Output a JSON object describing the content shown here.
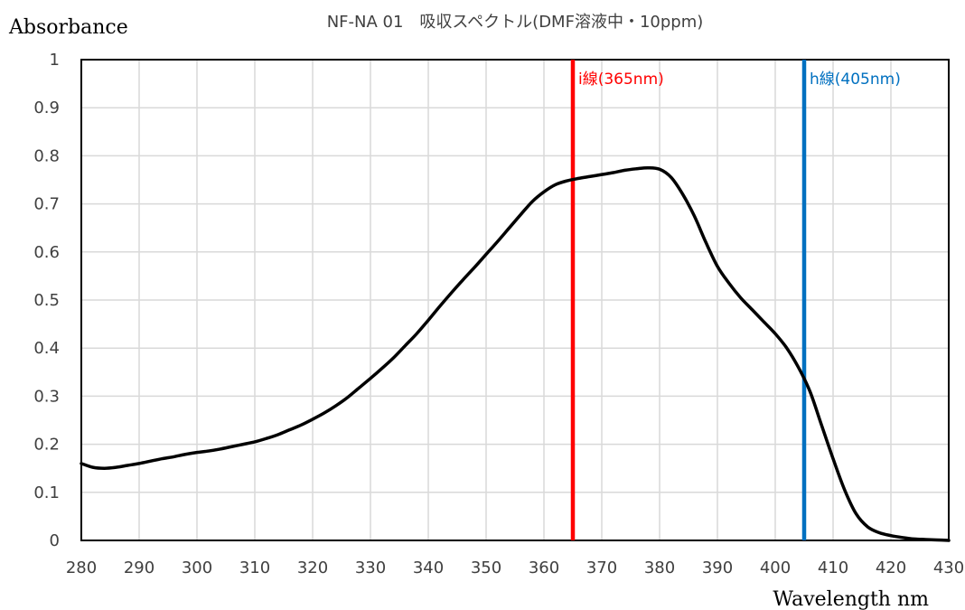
{
  "chart_data": {
    "type": "line",
    "title": "NF-NA 01　吸収スペクトル(DMF溶液中・10ppm)",
    "xlabel": "Wavelength nm",
    "ylabel": "Absorbance",
    "xlim": [
      280,
      430
    ],
    "ylim": [
      0,
      1
    ],
    "xticks": [
      280,
      290,
      300,
      310,
      320,
      330,
      340,
      350,
      360,
      370,
      380,
      390,
      400,
      410,
      420,
      430
    ],
    "yticks": [
      0,
      0.1,
      0.2,
      0.3,
      0.4,
      0.5,
      0.6,
      0.7,
      0.8,
      0.9,
      1
    ],
    "ytick_labels": [
      "0",
      "0.1",
      "0.2",
      "0.3",
      "0.4",
      "0.5",
      "0.6",
      "0.7",
      "0.8",
      "0.9",
      "1"
    ],
    "grid": true,
    "series": [
      {
        "color": "#000000",
        "x": [
          280,
          282,
          284,
          286,
          288,
          290,
          292,
          294,
          296,
          298,
          300,
          302,
          304,
          306,
          308,
          310,
          312,
          314,
          316,
          318,
          320,
          322,
          324,
          326,
          328,
          330,
          332,
          334,
          336,
          338,
          340,
          342,
          344,
          346,
          348,
          350,
          352,
          354,
          356,
          358,
          360,
          362,
          364,
          366,
          368,
          370,
          372,
          374,
          376,
          378,
          380,
          382,
          384,
          386,
          388,
          390,
          392,
          394,
          396,
          398,
          400,
          402,
          404,
          406,
          408,
          410,
          412,
          414,
          416,
          418,
          420,
          422,
          424,
          426,
          428,
          430
        ],
        "y": [
          0.16,
          0.152,
          0.15,
          0.152,
          0.156,
          0.16,
          0.165,
          0.17,
          0.174,
          0.179,
          0.183,
          0.186,
          0.19,
          0.195,
          0.2,
          0.205,
          0.212,
          0.22,
          0.23,
          0.24,
          0.252,
          0.265,
          0.28,
          0.297,
          0.317,
          0.337,
          0.358,
          0.38,
          0.405,
          0.43,
          0.458,
          0.487,
          0.515,
          0.542,
          0.568,
          0.595,
          0.622,
          0.65,
          0.678,
          0.705,
          0.725,
          0.74,
          0.748,
          0.753,
          0.757,
          0.761,
          0.765,
          0.77,
          0.773,
          0.775,
          0.772,
          0.755,
          0.72,
          0.675,
          0.62,
          0.57,
          0.535,
          0.505,
          0.48,
          0.455,
          0.43,
          0.4,
          0.36,
          0.31,
          0.24,
          0.17,
          0.105,
          0.055,
          0.028,
          0.016,
          0.01,
          0.006,
          0.003,
          0.002,
          0.001,
          0.0
        ]
      }
    ],
    "annotations": [
      {
        "label": "i線(365nm)",
        "x": 365,
        "color": "#ff0000"
      },
      {
        "label": "h線(405nm)",
        "x": 405,
        "color": "#0070c0"
      }
    ]
  }
}
